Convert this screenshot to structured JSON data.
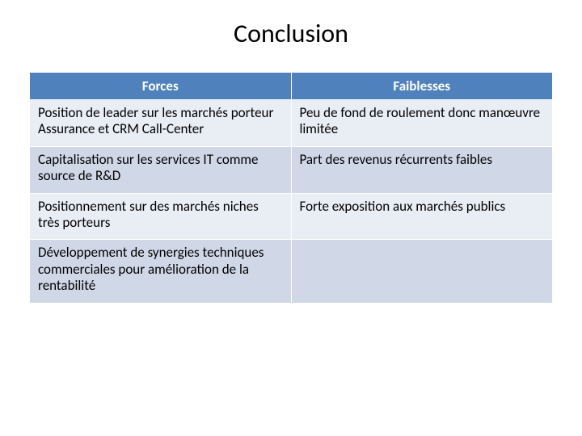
{
  "title": "Conclusion",
  "table": {
    "type": "table",
    "columns": [
      "Forces",
      "Faiblesses"
    ],
    "header_bg": "#4f81bd",
    "header_fg": "#ffffff",
    "band_colors": [
      "#e9edf4",
      "#d0d8e8"
    ],
    "border_color": "#ffffff",
    "font_size_header": 17,
    "font_size_cell": 17,
    "col_widths_pct": [
      50,
      50
    ],
    "rows": [
      [
        "Position de leader sur les marchés porteur Assurance et CRM Call-Center",
        "Peu de fond de roulement donc manœuvre limitée"
      ],
      [
        "Capitalisation sur les services IT comme source de R&D",
        "Part des revenus récurrents faibles"
      ],
      [
        "Positionnement sur des marchés niches très porteurs",
        "Forte exposition aux marchés publics"
      ],
      [
        "Développement de synergies techniques commerciales pour amélioration de la rentabilité",
        ""
      ]
    ]
  },
  "background_color": "#ffffff"
}
